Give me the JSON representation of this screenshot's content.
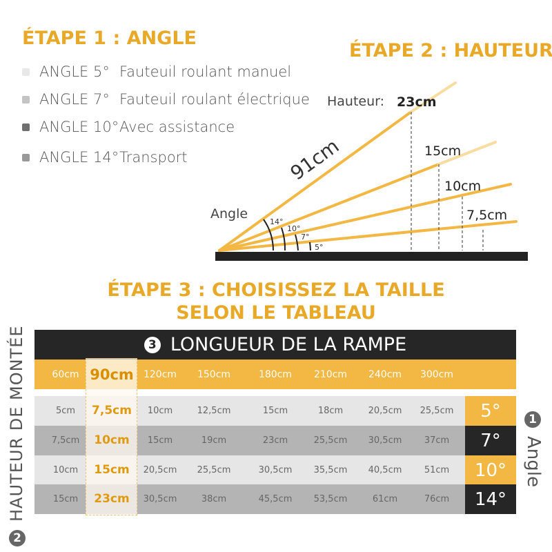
{
  "step1": {
    "title": "ÉTAPE 1 : ANGLE",
    "items": [
      {
        "angle": "ANGLE 5°",
        "use": "Fauteuil roulant manuel",
        "color": "#e8e8e8"
      },
      {
        "angle": "ANGLE 7°",
        "use": "Fauteuil roulant électrique",
        "color": "#c4c4c4"
      },
      {
        "angle": "ANGLE 10°",
        "use": "Avec assistance",
        "color": "#707070"
      },
      {
        "angle": "ANGLE 14°",
        "use": "Transport",
        "color": "#999999"
      }
    ]
  },
  "step2": {
    "title": "ÉTAPE 2 : HAUTEUR",
    "height_label": "Hauteur:",
    "length": "91cm",
    "angle_label": "Angle",
    "heights": [
      "23cm",
      "15cm",
      "10cm",
      "7,5cm"
    ],
    "angles": [
      "14°",
      "10°",
      "7°",
      "5°"
    ]
  },
  "step3": {
    "title_line1": "ÉTAPE 3 : CHOISISSEZ LA TAILLE",
    "title_line2": "SELON LE TABLEAU"
  },
  "table": {
    "badge3": "3",
    "header": "LONGUEUR DE LA RAMPE",
    "lengths": [
      "60cm",
      "90cm",
      "120cm",
      "150cm",
      "180cm",
      "210cm",
      "240cm",
      "300cm"
    ],
    "rows": [
      {
        "angle": "5°",
        "values": [
          "5cm",
          "7,5cm",
          "10cm",
          "12,5cm",
          "15cm",
          "18cm",
          "20,5cm",
          "25,5cm"
        ]
      },
      {
        "angle": "7°",
        "values": [
          "7,5cm",
          "10cm",
          "15cm",
          "19cm",
          "23cm",
          "25,5cm",
          "30,5cm",
          "37cm"
        ]
      },
      {
        "angle": "10°",
        "values": [
          "10cm",
          "15cm",
          "20,5cm",
          "25,5cm",
          "30,5cm",
          "35,5cm",
          "40,5cm",
          "51cm"
        ]
      },
      {
        "angle": "14°",
        "values": [
          "15cm",
          "23cm",
          "30,5cm",
          "38cm",
          "45,5cm",
          "53,5cm",
          "61cm",
          "76cm"
        ]
      }
    ],
    "left_label": "HAUTEUR DE MONTÉE",
    "badge2": "2",
    "right_label": "Angle",
    "badge1": "1"
  },
  "colors": {
    "accent": "#f3b744",
    "dark": "#262626",
    "row_light": "#e6e6e6",
    "row_dark": "#b4b4b4"
  }
}
